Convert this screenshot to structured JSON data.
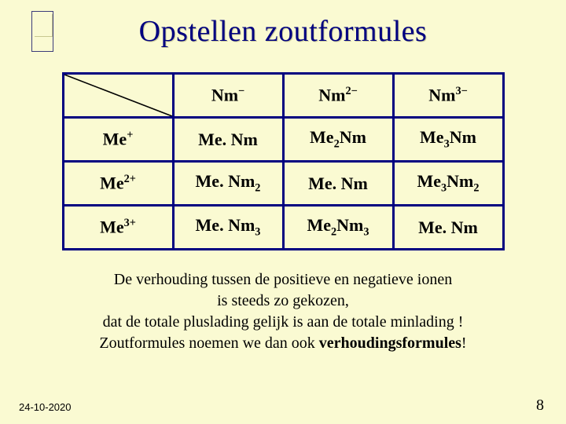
{
  "title": "Opstellen zoutformules",
  "table": {
    "col_headers": [
      {
        "base": "Nm",
        "sup": "−"
      },
      {
        "base": "Nm",
        "sup": "2−"
      },
      {
        "base": "Nm",
        "sup": "3−"
      }
    ],
    "row_headers": [
      {
        "base": "Me",
        "sup": "+"
      },
      {
        "base": "Me",
        "sup": "2+"
      },
      {
        "base": "Me",
        "sup": "3+"
      }
    ],
    "cells": [
      [
        {
          "parts": [
            {
              "t": "Me. Nm"
            }
          ]
        },
        {
          "parts": [
            {
              "t": "Me"
            },
            {
              "sub": "2"
            },
            {
              "t": "Nm"
            }
          ]
        },
        {
          "parts": [
            {
              "t": "Me"
            },
            {
              "sub": "3"
            },
            {
              "t": "Nm"
            }
          ]
        }
      ],
      [
        {
          "parts": [
            {
              "t": "Me. Nm"
            },
            {
              "sub": "2"
            }
          ]
        },
        {
          "parts": [
            {
              "t": "Me. Nm"
            }
          ]
        },
        {
          "parts": [
            {
              "t": "Me"
            },
            {
              "sub": "3"
            },
            {
              "t": "Nm"
            },
            {
              "sub": "2"
            }
          ]
        }
      ],
      [
        {
          "parts": [
            {
              "t": "Me. Nm"
            },
            {
              "sub": "3"
            }
          ]
        },
        {
          "parts": [
            {
              "t": "Me"
            },
            {
              "sub": "2"
            },
            {
              "t": "Nm"
            },
            {
              "sub": "3"
            }
          ]
        },
        {
          "parts": [
            {
              "t": "Me. Nm"
            }
          ]
        }
      ]
    ],
    "border_color": "#000080",
    "cell_fontsize": 22
  },
  "caption": {
    "line1": "De verhouding tussen de positieve en negatieve ionen",
    "line2": "is steeds zo gekozen,",
    "line3": "dat de totale pluslading gelijk is aan de totale minlading !",
    "line4_a": "Zoutformules noemen we dan ook ",
    "line4_b": "verhoudingsformules",
    "line4_c": "!"
  },
  "footer": {
    "date": "24-10-2020",
    "page": "8"
  },
  "colors": {
    "background": "#fafad2",
    "title": "#000080",
    "border": "#000080",
    "text": "#000000"
  }
}
